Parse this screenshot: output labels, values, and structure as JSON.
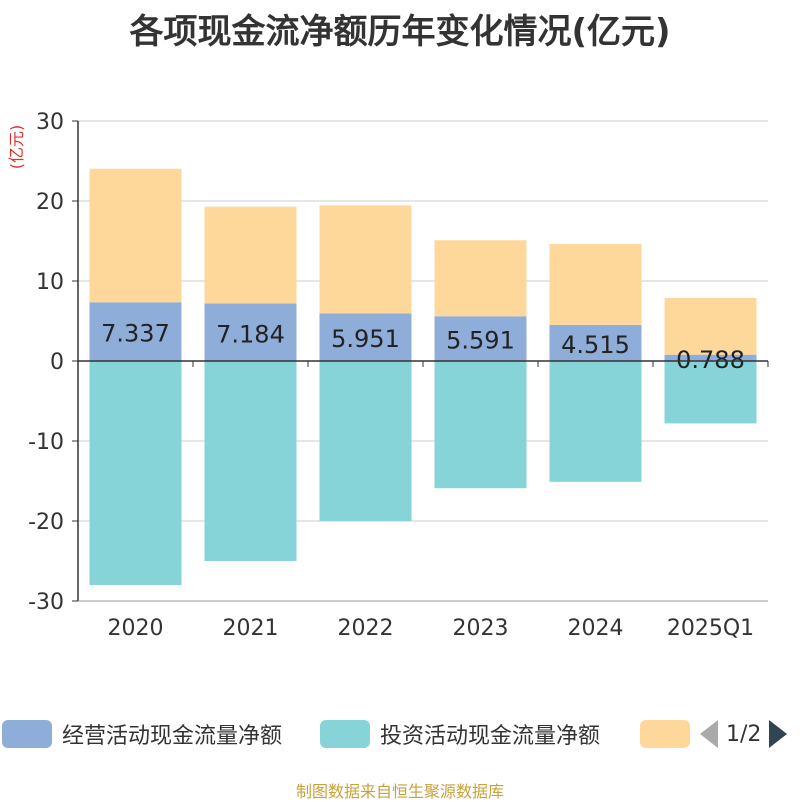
{
  "title": "各项现金流净额历年变化情况(亿元)",
  "source": "制图数据来自恒生聚源数据库",
  "pager": "1/2",
  "chart_data": {
    "type": "bar",
    "stacked": true,
    "ylabel": "(亿元)",
    "ylim": [
      -30,
      30
    ],
    "yticks": [
      30,
      20,
      10,
      0,
      -10,
      -20,
      -30
    ],
    "grid": true,
    "legend_position": "bottom",
    "categories": [
      "2020",
      "2021",
      "2022",
      "2023",
      "2024",
      "2025Q1"
    ],
    "series": [
      {
        "name": "经营活动现金流量净额",
        "color": "#8fadd9",
        "values": [
          7.337,
          7.184,
          5.951,
          5.591,
          4.515,
          0.788
        ],
        "labels": [
          "7.337",
          "7.184",
          "5.951",
          "5.591",
          "4.515",
          "0.788"
        ]
      },
      {
        "name": "投资活动现金流量净额",
        "color": "#86d4d8",
        "values": [
          -28.0,
          -25.0,
          -20.0,
          -15.9,
          -15.1,
          -7.8
        ]
      },
      {
        "name": "",
        "color": "#fdd89a",
        "values": [
          16.7,
          12.1,
          13.5,
          9.5,
          10.1,
          7.1
        ]
      }
    ]
  }
}
